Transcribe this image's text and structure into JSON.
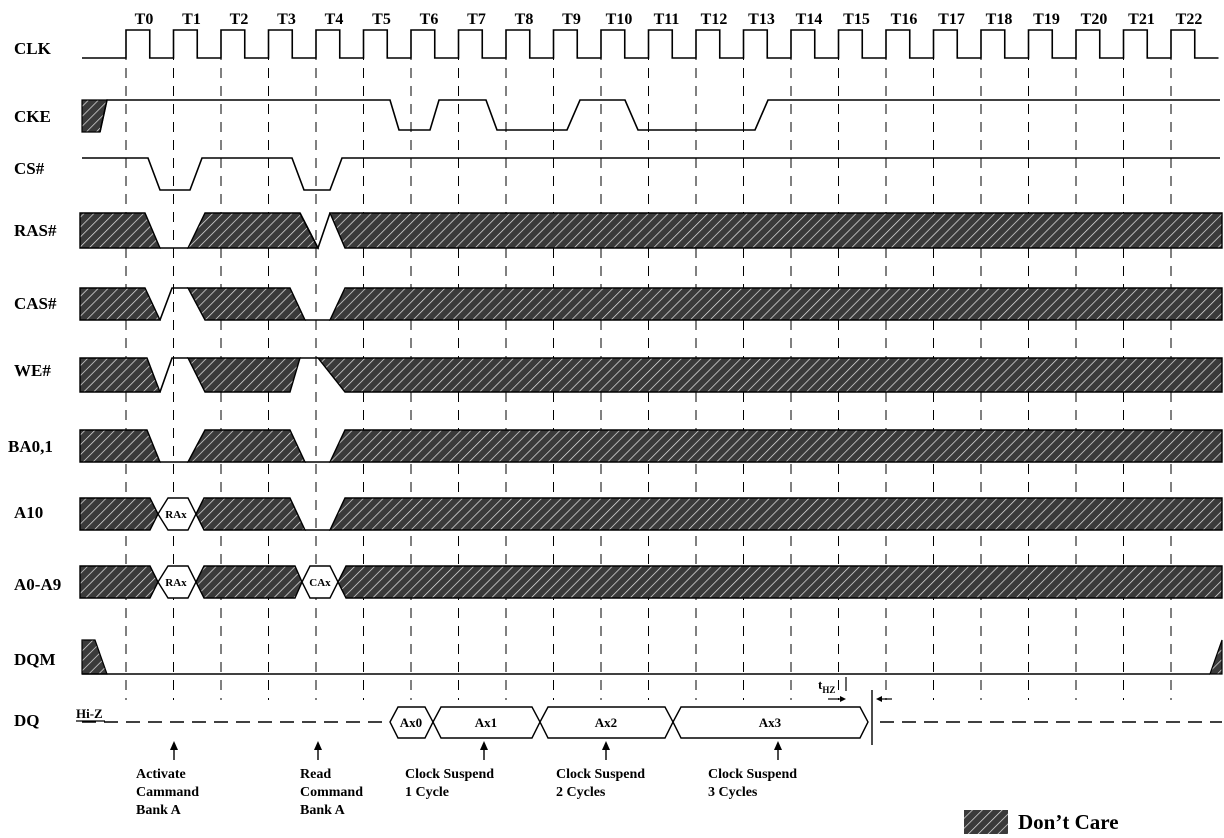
{
  "clock_labels": [
    "T0",
    "T1",
    "T2",
    "T3",
    "T4",
    "T5",
    "T6",
    "T7",
    "T8",
    "T9",
    "T10",
    "T11",
    "T12",
    "T13",
    "T14",
    "T15",
    "T16",
    "T17",
    "T18",
    "T19",
    "T20",
    "T21",
    "T22"
  ],
  "signals": [
    "CLK",
    "CKE",
    "CS#",
    "RAS#",
    "CAS#",
    "WE#",
    "BA0,1",
    "A10",
    "A0-A9",
    "DQM",
    "DQ"
  ],
  "bus_values": {
    "a10_row": "RAx",
    "a09_row": "RAx",
    "a09_col": "CAx",
    "dq": [
      "Ax0",
      "Ax1",
      "Ax2",
      "Ax3"
    ]
  },
  "hiz_label": "Hi-Z",
  "thz_label": {
    "main": "t",
    "sub": "HZ"
  },
  "annotations": [
    {
      "lines": [
        "Activate",
        "Cammand",
        "Bank A"
      ]
    },
    {
      "lines": [
        "Read",
        "Command",
        "Bank A"
      ]
    },
    {
      "lines": [
        "Clock Suspend",
        "1 Cycle"
      ]
    },
    {
      "lines": [
        "Clock Suspend",
        "2 Cycles"
      ]
    },
    {
      "lines": [
        "Clock Suspend",
        "3 Cycles"
      ]
    }
  ],
  "legend_label": "Don’t Care"
}
